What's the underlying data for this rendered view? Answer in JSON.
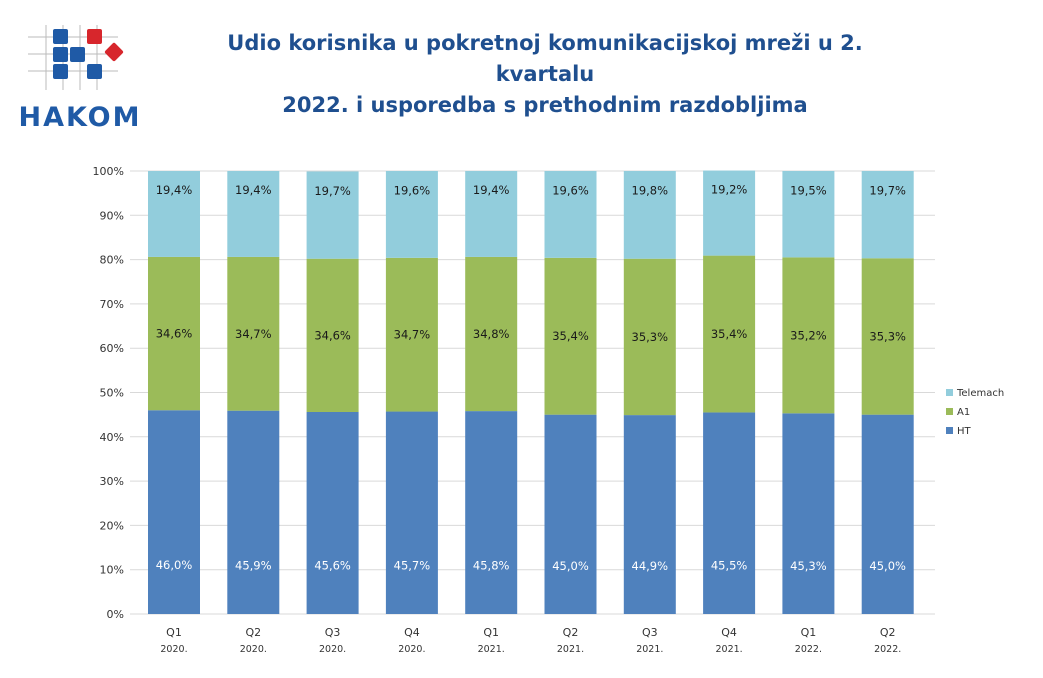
{
  "header": {
    "logo_text": "HAKOM",
    "title_line1": "Udio korisnika u pokretnoj komunikacijskoj mreži u 2. kvartalu",
    "title_line2": "2022. i usporedba s prethodnim razdobljima"
  },
  "chart_data": {
    "type": "bar",
    "stacked": true,
    "title": "Udio korisnika u pokretnoj komunikacijskoj mreži u 2. kvartalu 2022. i usporedba s prethodnim razdobljima",
    "categories": [
      {
        "quarter": "Q1",
        "year": "2020."
      },
      {
        "quarter": "Q2",
        "year": "2020."
      },
      {
        "quarter": "Q3",
        "year": "2020."
      },
      {
        "quarter": "Q4",
        "year": "2020."
      },
      {
        "quarter": "Q1",
        "year": "2021."
      },
      {
        "quarter": "Q2",
        "year": "2021."
      },
      {
        "quarter": "Q3",
        "year": "2021."
      },
      {
        "quarter": "Q4",
        "year": "2021."
      },
      {
        "quarter": "Q1",
        "year": "2022."
      },
      {
        "quarter": "Q2",
        "year": "2022."
      }
    ],
    "series": [
      {
        "name": "HT",
        "color": "#4f81bd",
        "label_color": "#ffffff",
        "values": [
          46.0,
          45.9,
          45.6,
          45.7,
          45.8,
          45.0,
          44.9,
          45.5,
          45.3,
          45.0
        ]
      },
      {
        "name": "A1",
        "color": "#9bbb59",
        "label_color": "#1a1a1a",
        "values": [
          34.6,
          34.7,
          34.6,
          34.7,
          34.8,
          35.4,
          35.3,
          35.4,
          35.2,
          35.3
        ]
      },
      {
        "name": "Telemach",
        "color": "#92cddc",
        "label_color": "#1a1a1a",
        "values": [
          19.4,
          19.4,
          19.7,
          19.6,
          19.4,
          19.6,
          19.8,
          19.2,
          19.5,
          19.7
        ]
      }
    ],
    "yticks": [
      "0%",
      "10%",
      "20%",
      "30%",
      "40%",
      "50%",
      "60%",
      "70%",
      "80%",
      "90%",
      "100%"
    ],
    "ylim": [
      0,
      100
    ],
    "grid": true,
    "legend": "right",
    "legend_order": [
      "Telemach",
      "A1",
      "HT"
    ]
  }
}
